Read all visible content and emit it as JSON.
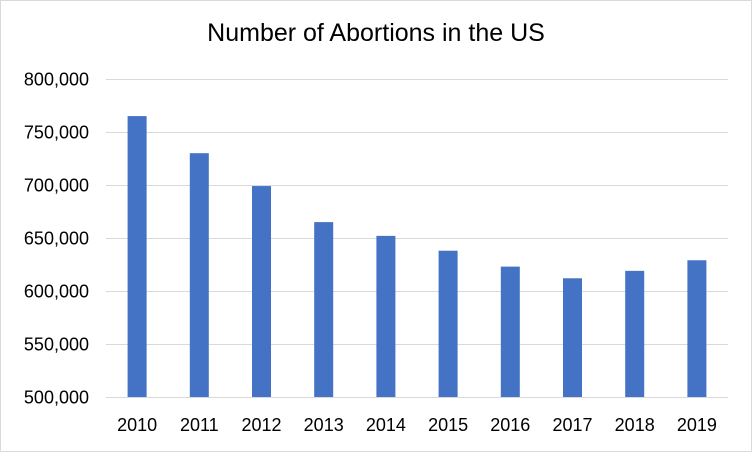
{
  "chart_data": {
    "type": "bar",
    "title": "Number of Abortions in the US",
    "xlabel": "",
    "ylabel": "",
    "categories": [
      "2010",
      "2011",
      "2012",
      "2013",
      "2014",
      "2015",
      "2016",
      "2017",
      "2018",
      "2019"
    ],
    "values": [
      765000,
      730000,
      699000,
      665000,
      652000,
      638000,
      623000,
      612000,
      619000,
      629000
    ],
    "ylim": [
      500000,
      800000
    ],
    "yticks": [
      500000,
      550000,
      600000,
      650000,
      700000,
      750000,
      800000
    ],
    "ytick_labels": [
      "500,000",
      "550,000",
      "600,000",
      "650,000",
      "700,000",
      "750,000",
      "800,000"
    ],
    "grid": true,
    "legend": "none",
    "colors": {
      "bar": "#4472c4",
      "grid": "#d9d9d9",
      "axis": "#d9d9d9"
    }
  }
}
